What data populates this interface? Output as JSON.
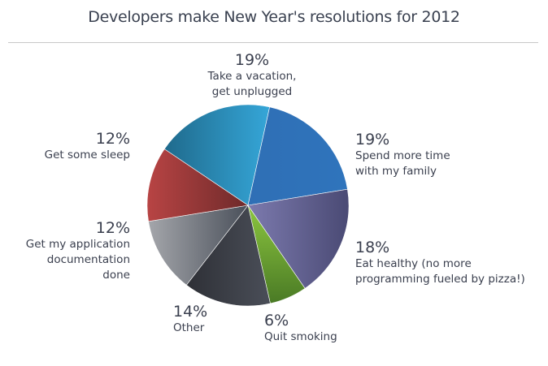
{
  "title": "Developers make New Year's resolutions for 2012",
  "chart_data": {
    "type": "pie",
    "title": "Developers make New Year's resolutions for 2012",
    "categories": [
      "Take a vacation, get unplugged",
      "Spend more time with my family",
      "Eat healthy (no more programming fueled by pizza!)",
      "Quit smoking",
      "Other",
      "Get my application documentation done",
      "Get some sleep"
    ],
    "values": [
      19,
      19,
      18,
      6,
      14,
      12,
      12
    ],
    "colors": [
      "#2f8fc0",
      "#2e72b8",
      "#5f5f8e",
      "#6aa033",
      "#454952",
      "#858992",
      "#9e3a3a"
    ]
  },
  "labels": [
    {
      "pct": "19%",
      "line1": "Take a vacation,",
      "line2": "get unplugged"
    },
    {
      "pct": "19%",
      "line1": "Spend more time",
      "line2": "with my family"
    },
    {
      "pct": "18%",
      "line1": "Eat healthy (no more",
      "line2": "programming fueled by pizza!)"
    },
    {
      "pct": "6%",
      "line1": "Quit smoking",
      "line2": ""
    },
    {
      "pct": "14%",
      "line1": "Other",
      "line2": ""
    },
    {
      "pct": "12%",
      "line1": "Get my application",
      "line2": "documentation done"
    },
    {
      "pct": "12%",
      "line1": "Get some sleep",
      "line2": ""
    }
  ]
}
